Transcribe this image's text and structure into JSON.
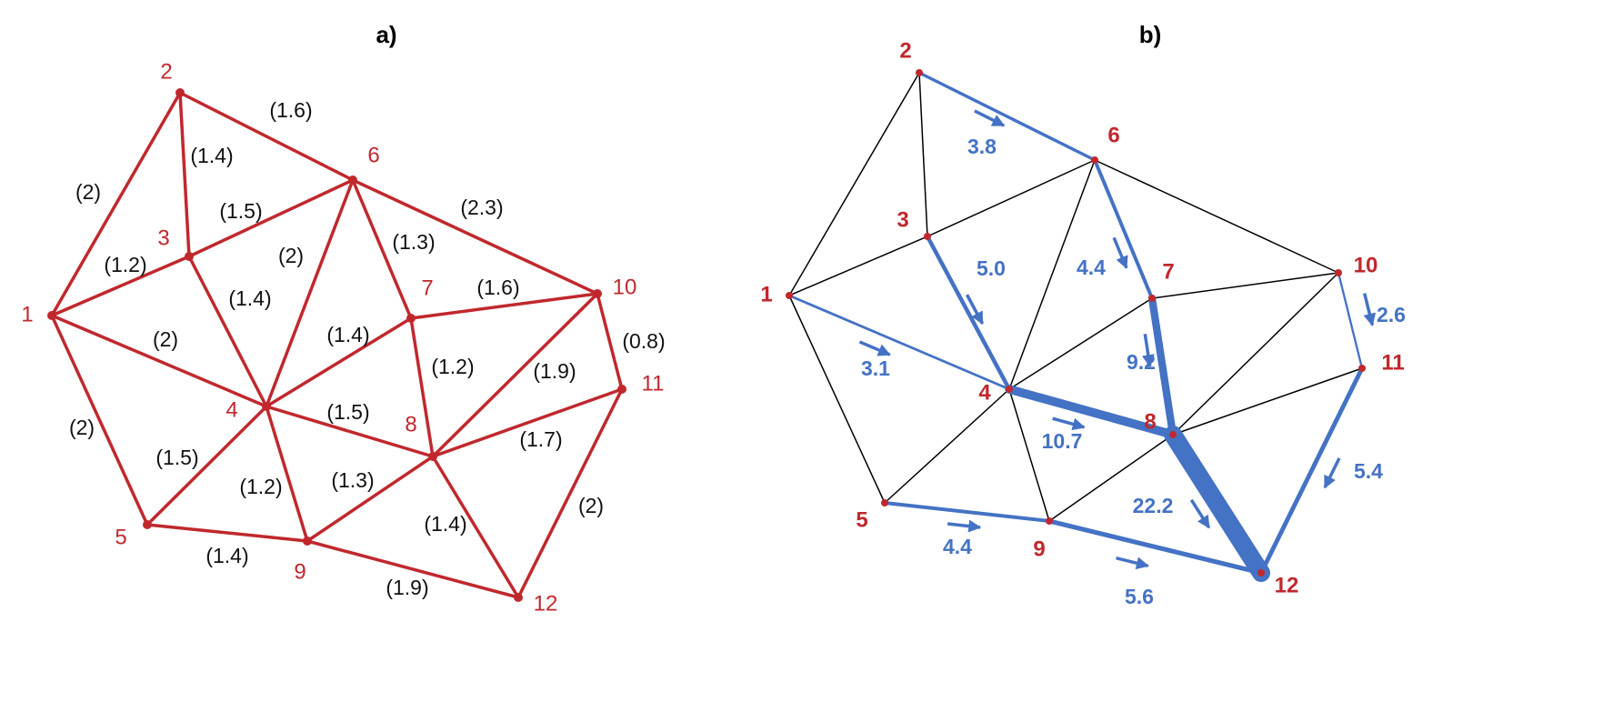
{
  "panels": [
    {
      "title": "a)",
      "nodes": [
        "1",
        "2",
        "3",
        "4",
        "5",
        "6",
        "7",
        "8",
        "9",
        "10",
        "11",
        "12"
      ],
      "edge_labels": [
        "(2)",
        "(1.6)",
        "(1.4)",
        "(1.5)",
        "(1.2)",
        "(1.4)",
        "(2)",
        "(1.3)",
        "(2.3)",
        "(1.6)",
        "(2)",
        "(1.4)",
        "(1.2)",
        "(1.5)",
        "(1.9)",
        "(0.8)",
        "(2)",
        "(1.5)",
        "(1.2)",
        "(1.3)",
        "(1.7)",
        "(1.4)",
        "(2)",
        "(1.4)",
        "(1.9)"
      ]
    },
    {
      "title": "b)",
      "nodes": [
        "1",
        "2",
        "3",
        "4",
        "5",
        "6",
        "7",
        "8",
        "9",
        "10",
        "11",
        "12"
      ],
      "flows": [
        {
          "value": 3.8,
          "label": "3.8"
        },
        {
          "value": 4.4,
          "label": "4.4"
        },
        {
          "value": 5.0,
          "label": "5.0"
        },
        {
          "value": 3.1,
          "label": "3.1"
        },
        {
          "value": 9.2,
          "label": "9.2"
        },
        {
          "value": 10.7,
          "label": "10.7"
        },
        {
          "value": 22.2,
          "label": "22.2"
        },
        {
          "value": 2.6,
          "label": "2.6"
        },
        {
          "value": 5.4,
          "label": "5.4"
        },
        {
          "value": 4.4,
          "label": "4.4"
        },
        {
          "value": 5.6,
          "label": "5.6"
        }
      ]
    }
  ]
}
